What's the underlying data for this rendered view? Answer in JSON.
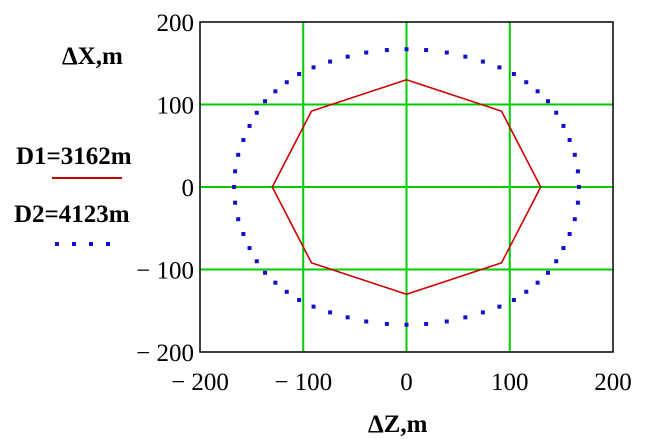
{
  "chart_data": {
    "type": "line",
    "xlabel": "ΔZ,m",
    "ylabel": "ΔX,m",
    "xlim": [
      -200,
      200
    ],
    "ylim": [
      -200,
      200
    ],
    "xticks": [
      "− 200",
      "− 100",
      "0",
      "100",
      "200"
    ],
    "yticks": [
      "200",
      "100",
      "0",
      "− 100",
      "− 200"
    ],
    "grid": true,
    "grid_color": "#00cc00",
    "legend_placement": "left",
    "series": [
      {
        "name": "D1=3162m",
        "style": "solid",
        "color": "#cc0000",
        "x": [
          0,
          92,
          130,
          92,
          0,
          -92,
          -130,
          -92,
          0
        ],
        "y": [
          130,
          92,
          0,
          -92,
          -130,
          -92,
          0,
          92,
          130
        ]
      },
      {
        "name": "D2=4123m",
        "style": "dotted",
        "color": "#1010c8",
        "x": [
          0,
          19,
          39,
          57,
          74,
          90,
          104,
          116,
          127,
          137,
          145,
          152,
          158,
          163,
          166,
          167,
          166,
          163,
          158,
          152,
          145,
          137,
          127,
          116,
          104,
          90,
          74,
          57,
          39,
          19,
          0,
          -19,
          -39,
          -57,
          -74,
          -90,
          -104,
          -116,
          -127,
          -137,
          -145,
          -152,
          -158,
          -163,
          -166,
          -167,
          -166,
          -163,
          -158,
          -152,
          -145,
          -137,
          -127,
          -116,
          -104,
          -90,
          -74,
          -57,
          -39,
          -19
        ],
        "y": [
          167,
          166,
          163,
          158,
          152,
          145,
          137,
          127,
          116,
          104,
          90,
          74,
          57,
          39,
          19,
          0,
          -19,
          -39,
          -57,
          -74,
          -90,
          -104,
          -116,
          -127,
          -137,
          -145,
          -152,
          -158,
          -163,
          -166,
          -167,
          -166,
          -163,
          -158,
          -152,
          -145,
          -137,
          -127,
          -116,
          -104,
          -90,
          -74,
          -57,
          -39,
          -19,
          0,
          19,
          39,
          57,
          74,
          90,
          104,
          116,
          127,
          137,
          145,
          152,
          158,
          163,
          166
        ]
      }
    ]
  }
}
